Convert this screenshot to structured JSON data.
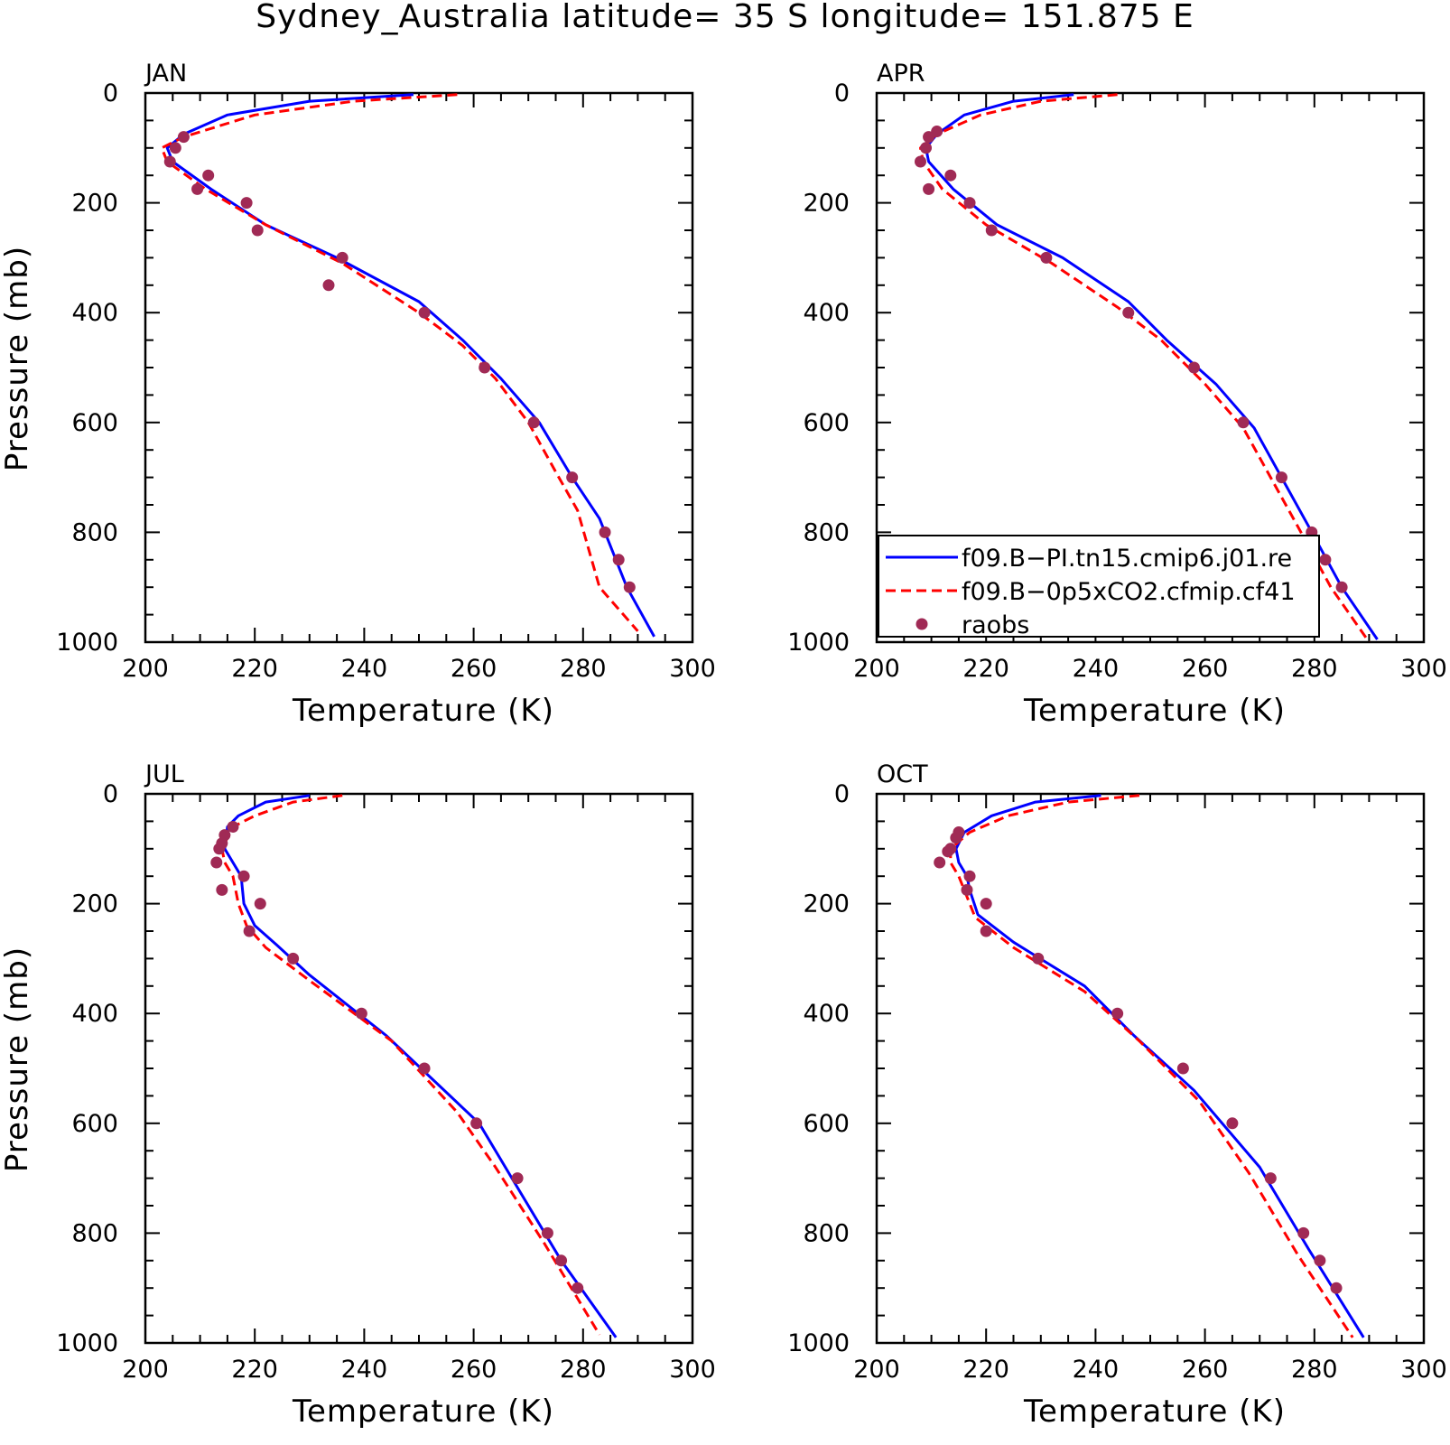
{
  "title": "Sydney_Australia  latitude= 35 S longitude= 151.875 E",
  "colors": {
    "model1": "#0000ff",
    "model2": "#ff0000",
    "raobs": "#a02a55",
    "axis": "#000000"
  },
  "legend": {
    "placement": "lower-right of APR panel",
    "entries": [
      {
        "label": "f09.B−PI.tn15.cmip6.j01.re",
        "style": "solid",
        "color": "#0000ff"
      },
      {
        "label": "f09.B−0p5xCO2.cfmip.cf41",
        "style": "dashed",
        "color": "#ff0000"
      },
      {
        "label": "raobs",
        "style": "dot",
        "color": "#a02a55"
      }
    ]
  },
  "chart_data": [
    {
      "type": "line",
      "panel": "JAN",
      "xlabel": "Temperature (K)",
      "ylabel": "Pressure (mb)",
      "xlim": [
        200,
        300
      ],
      "ylim": [
        1000,
        0
      ],
      "y_inverted": true,
      "xticks": [
        200,
        220,
        240,
        260,
        280,
        300
      ],
      "yticks": [
        0,
        200,
        400,
        600,
        800,
        1000
      ],
      "series": [
        {
          "name": "f09.B−PI.tn15.cmip6.j01.re",
          "style": "solid",
          "x": [
            249,
            230,
            215,
            207,
            204,
            205,
            212,
            222,
            235,
            250,
            258,
            265,
            272,
            278,
            283,
            288,
            293
          ],
          "y": [
            3,
            15,
            40,
            75,
            100,
            125,
            175,
            240,
            300,
            380,
            450,
            520,
            600,
            700,
            775,
            900,
            990
          ]
        },
        {
          "name": "f09.B−0p5xCO2.cfmip.cf41",
          "style": "dashed",
          "x": [
            257,
            238,
            220,
            207,
            203,
            204,
            211,
            222,
            236,
            250,
            258,
            264,
            270,
            275,
            279,
            283,
            290
          ],
          "y": [
            3,
            15,
            40,
            80,
            100,
            125,
            175,
            240,
            310,
            400,
            460,
            520,
            600,
            690,
            760,
            900,
            980
          ]
        },
        {
          "name": "raobs",
          "style": "markers",
          "x": [
            207,
            205.5,
            204.5,
            211.5,
            209.5,
            218.5,
            220.5,
            236,
            233.5,
            251,
            262,
            271,
            278,
            284,
            286.5,
            288.5
          ],
          "y": [
            80,
            100,
            125,
            150,
            175,
            200,
            250,
            300,
            350,
            400,
            500,
            600,
            700,
            800,
            850,
            900
          ]
        }
      ]
    },
    {
      "type": "line",
      "panel": "APR",
      "xlabel": "Temperature (K)",
      "ylabel": "",
      "xlim": [
        200,
        300
      ],
      "ylim": [
        1000,
        0
      ],
      "y_inverted": true,
      "xticks": [
        200,
        220,
        240,
        260,
        280,
        300
      ],
      "yticks": [
        0,
        200,
        400,
        600,
        800,
        1000
      ],
      "series": [
        {
          "name": "f09.B−PI.tn15.cmip6.j01.re",
          "style": "solid",
          "x": [
            236,
            225,
            216,
            211,
            209,
            209.5,
            214,
            222,
            234,
            246,
            253,
            262,
            269,
            274,
            279,
            285,
            291.5
          ],
          "y": [
            3,
            15,
            40,
            75,
            100,
            125,
            175,
            240,
            300,
            380,
            450,
            530,
            610,
            700,
            790,
            900,
            995
          ]
        },
        {
          "name": "f09.B−0p5xCO2.cfmip.cf41",
          "style": "dashed",
          "x": [
            244,
            230,
            219,
            211,
            208,
            208.5,
            212,
            220,
            232,
            244,
            252,
            260,
            267,
            272,
            277,
            283,
            290
          ],
          "y": [
            3,
            15,
            40,
            75,
            100,
            125,
            175,
            240,
            310,
            390,
            450,
            530,
            610,
            700,
            790,
            900,
            1000
          ]
        },
        {
          "name": "raobs",
          "style": "markers",
          "x": [
            211,
            209.5,
            209,
            208,
            213.5,
            209.5,
            217,
            221,
            231,
            246,
            258,
            267,
            274,
            279.5,
            282,
            285
          ],
          "y": [
            70,
            80,
            100,
            125,
            150,
            175,
            200,
            250,
            300,
            400,
            500,
            600,
            700,
            800,
            850,
            900
          ]
        }
      ]
    },
    {
      "type": "line",
      "panel": "JUL",
      "xlabel": "Temperature (K)",
      "ylabel": "Pressure (mb)",
      "xlim": [
        200,
        300
      ],
      "ylim": [
        1000,
        0
      ],
      "y_inverted": true,
      "xticks": [
        200,
        220,
        240,
        260,
        280,
        300
      ],
      "yticks": [
        0,
        200,
        400,
        600,
        800,
        1000
      ],
      "series": [
        {
          "name": "f09.B−PI.tn15.cmip6.j01.re",
          "style": "solid",
          "x": [
            230,
            222,
            217,
            215,
            214.5,
            216,
            217.5,
            218,
            220,
            224,
            230,
            244,
            261,
            267,
            276,
            286
          ],
          "y": [
            3,
            15,
            40,
            60,
            100,
            125,
            150,
            200,
            240,
            275,
            330,
            440,
            600,
            700,
            850,
            990
          ]
        },
        {
          "name": "f09.B−0p5xCO2.cfmip.cf41",
          "style": "dashed",
          "x": [
            236,
            227,
            220,
            216,
            214,
            214.5,
            216,
            217,
            218.5,
            222,
            230,
            245,
            257,
            264,
            273,
            283
          ],
          "y": [
            3,
            15,
            40,
            60,
            100,
            125,
            150,
            200,
            240,
            280,
            340,
            450,
            580,
            680,
            820,
            985
          ]
        },
        {
          "name": "raobs",
          "style": "markers",
          "x": [
            216,
            214.5,
            214,
            213.5,
            213,
            218,
            214,
            221,
            219,
            227,
            239.5,
            251,
            260.5,
            268,
            273.5,
            276,
            279
          ],
          "y": [
            60,
            75,
            90,
            100,
            125,
            150,
            175,
            200,
            250,
            300,
            400,
            500,
            600,
            700,
            800,
            850,
            900
          ]
        }
      ]
    },
    {
      "type": "line",
      "panel": "OCT",
      "xlabel": "Temperature (K)",
      "ylabel": "",
      "xlim": [
        200,
        300
      ],
      "ylim": [
        1000,
        0
      ],
      "y_inverted": true,
      "xticks": [
        200,
        220,
        240,
        260,
        280,
        300
      ],
      "yticks": [
        0,
        200,
        400,
        600,
        800,
        1000
      ],
      "series": [
        {
          "name": "f09.B−PI.tn15.cmip6.j01.re",
          "style": "solid",
          "x": [
            241,
            229,
            221,
            216,
            214.5,
            215,
            216.5,
            217,
            218.5,
            225,
            238,
            247,
            258,
            270,
            279,
            289
          ],
          "y": [
            3,
            15,
            40,
            70,
            100,
            125,
            150,
            175,
            220,
            270,
            350,
            440,
            540,
            680,
            830,
            990
          ]
        },
        {
          "name": "f09.B−0p5xCO2.cfmip.cf41",
          "style": "dashed",
          "x": [
            248,
            235,
            224,
            217,
            213.5,
            213.5,
            215,
            216,
            218,
            225,
            238,
            248,
            259,
            268,
            277,
            287
          ],
          "y": [
            3,
            15,
            40,
            70,
            100,
            125,
            150,
            175,
            225,
            280,
            360,
            450,
            560,
            690,
            840,
            990
          ]
        },
        {
          "name": "raobs",
          "style": "markers",
          "x": [
            215,
            214.5,
            213.5,
            213,
            211.5,
            217,
            216.5,
            220,
            220,
            229.5,
            244,
            256,
            265,
            272,
            278,
            281,
            284
          ],
          "y": [
            70,
            80,
            100,
            105,
            125,
            150,
            175,
            200,
            250,
            300,
            400,
            500,
            600,
            700,
            800,
            850,
            900
          ]
        }
      ]
    }
  ]
}
